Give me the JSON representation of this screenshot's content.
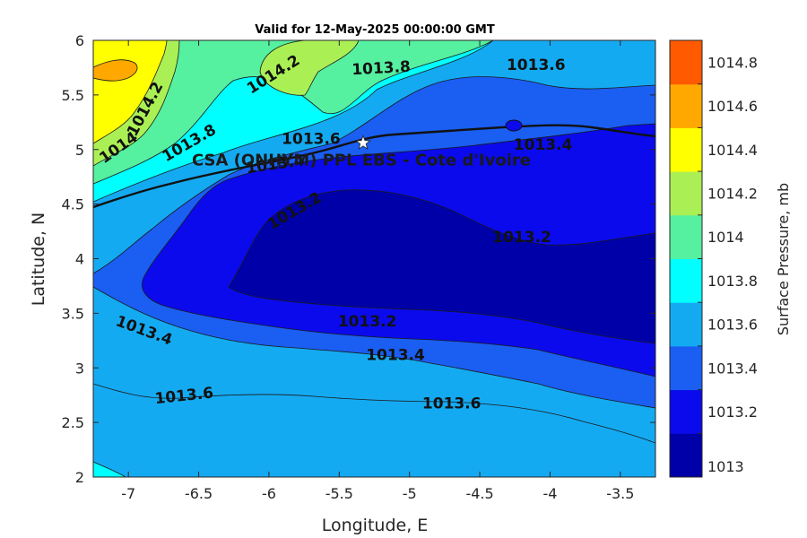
{
  "chart_data": {
    "type": "contour",
    "title": "Valid for 12-May-2025 00:00:00 GMT",
    "xlabel": "Longitude, E",
    "ylabel": "Latitude, N",
    "xlim": [
      -7.25,
      -3.25
    ],
    "ylim": [
      2,
      6
    ],
    "xticks": [
      -7,
      -6.5,
      -6,
      -5.5,
      -5,
      -4.5,
      -4,
      -3.5
    ],
    "yticks": [
      2,
      2.5,
      3,
      3.5,
      4,
      4.5,
      5,
      5.5,
      6
    ],
    "colorbar": {
      "label": "Surface Pressure, mb",
      "levels": [
        1013,
        1013.2,
        1013.4,
        1013.6,
        1013.8,
        1014,
        1014.2,
        1014.4,
        1014.6,
        1014.8
      ],
      "tick_labels": [
        "1013",
        "1013.2",
        "1013.4",
        "1013.6",
        "1013.8",
        "1014",
        "1014.2",
        "1014.4",
        "1014.6",
        "1014.8"
      ],
      "colors": [
        "#0000a8",
        "#0a0aec",
        "#1a5ef2",
        "#14aaf2",
        "#00ffff",
        "#55f0a0",
        "#aaf055",
        "#ffff00",
        "#ffa800",
        "#ff5a00"
      ]
    },
    "contour_labels": [
      {
        "text": "1014.2",
        "lon": -6.85,
        "lat": 5.35,
        "angle": -62
      },
      {
        "text": "1014.2",
        "lon": -5.95,
        "lat": 5.65,
        "angle": -32
      },
      {
        "text": "1013.8",
        "lon": -5.2,
        "lat": 5.7,
        "angle": -3
      },
      {
        "text": "1013.6",
        "lon": -4.1,
        "lat": 5.73,
        "angle": 0
      },
      {
        "text": "1014",
        "lon": -7.05,
        "lat": 4.98,
        "angle": -35
      },
      {
        "text": "1013.8",
        "lon": -6.55,
        "lat": 5.02,
        "angle": -30
      },
      {
        "text": "1013.6",
        "lon": -5.7,
        "lat": 5.05,
        "angle": 0
      },
      {
        "text": "1013.4",
        "lon": -5.95,
        "lat": 4.82,
        "angle": -8
      },
      {
        "text": "1013.4",
        "lon": -4.05,
        "lat": 5.0,
        "angle": 0
      },
      {
        "text": "1013.2",
        "lon": -5.8,
        "lat": 4.4,
        "angle": -30
      },
      {
        "text": "1013.2",
        "lon": -4.2,
        "lat": 4.15,
        "angle": 0
      },
      {
        "text": "1013.2",
        "lon": -5.3,
        "lat": 3.38,
        "angle": 0
      },
      {
        "text": "1013.4",
        "lon": -6.9,
        "lat": 3.3,
        "angle": 20
      },
      {
        "text": "1013.4",
        "lon": -5.1,
        "lat": 3.07,
        "angle": 0
      },
      {
        "text": "1013.6",
        "lon": -6.6,
        "lat": 2.7,
        "angle": -6
      },
      {
        "text": "1013.6",
        "lon": -4.7,
        "lat": 2.63,
        "angle": 0
      }
    ],
    "location": {
      "label": "CSA (ONHYM) PPL EBS  - Cote d'Ivoire",
      "lon": -5.33,
      "lat": 5.06
    }
  }
}
